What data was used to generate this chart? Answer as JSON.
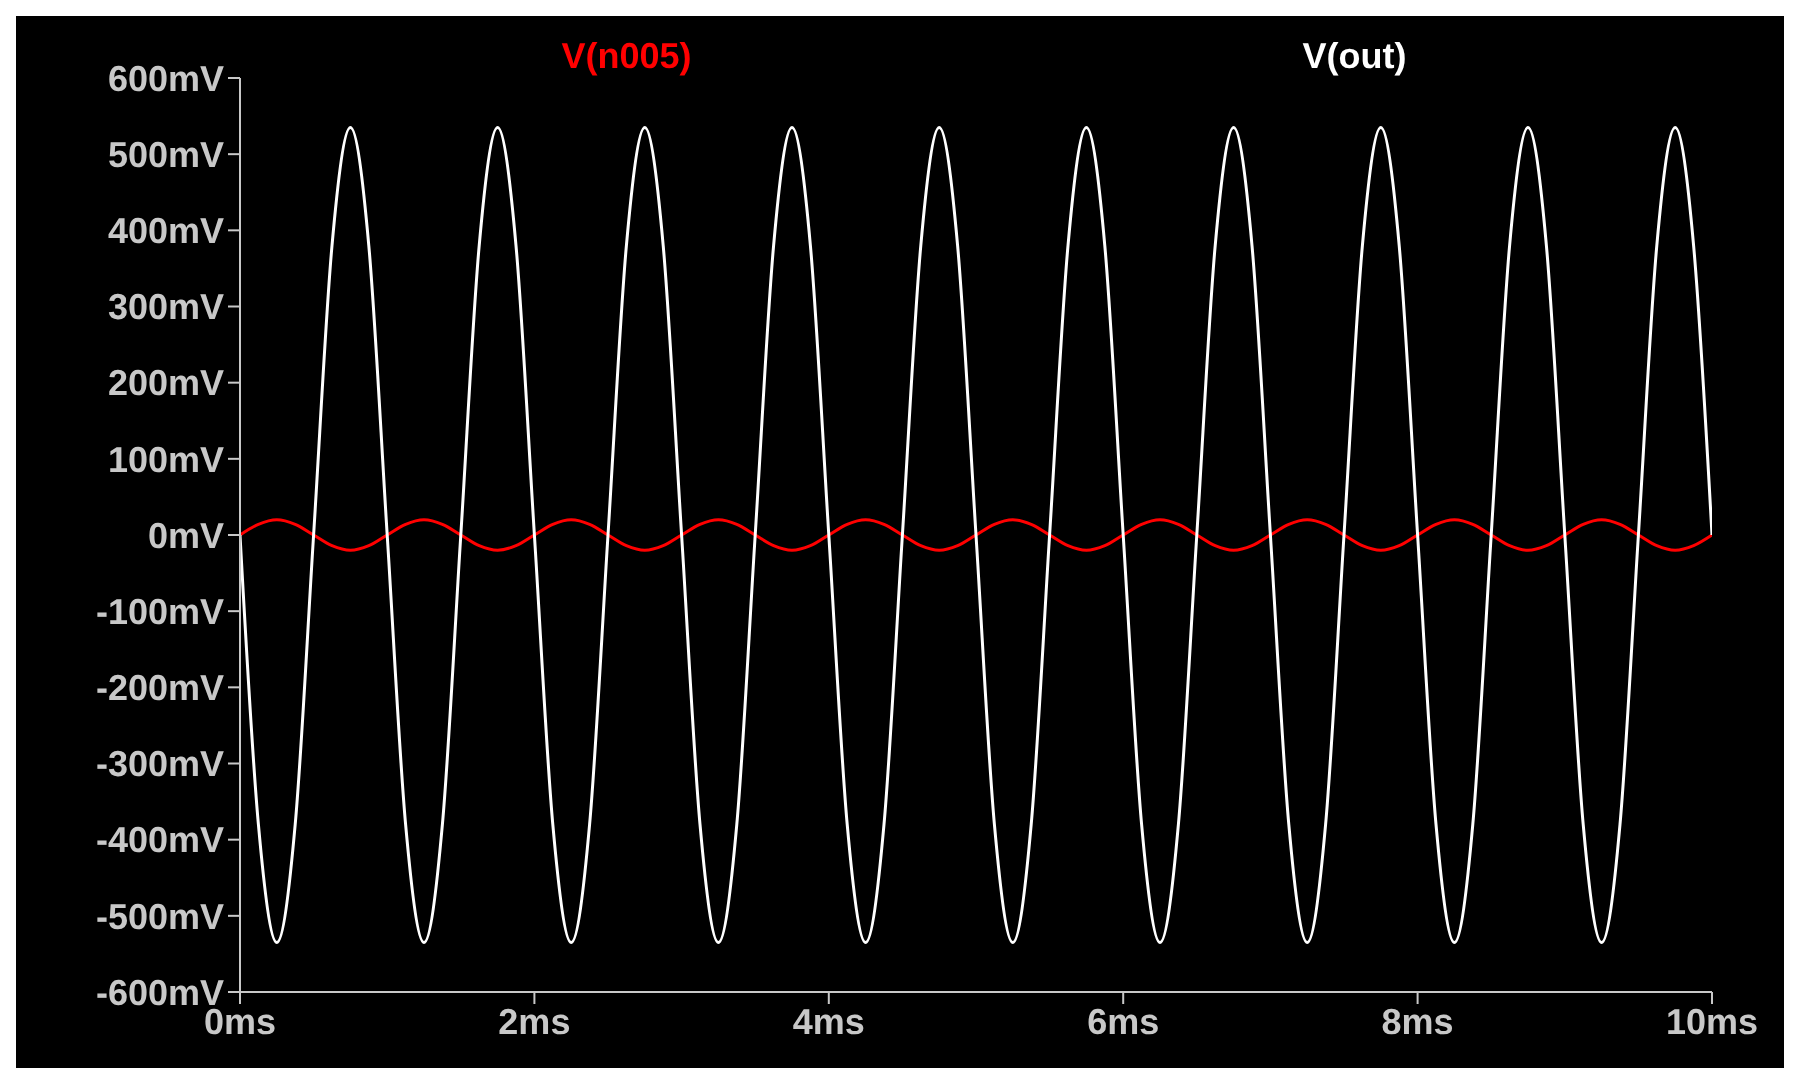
{
  "chart_data": {
    "type": "line",
    "legend": "top",
    "marker": "none",
    "line_style": "solid",
    "grid": false,
    "xlim": [
      0,
      10
    ],
    "xticks": [
      {
        "value": 0,
        "label": "0ms"
      },
      {
        "value": 2,
        "label": "2ms"
      },
      {
        "value": 4,
        "label": "4ms"
      },
      {
        "value": 6,
        "label": "6ms"
      },
      {
        "value": 8,
        "label": "8ms"
      },
      {
        "value": 10,
        "label": "10ms"
      }
    ],
    "ylim": [
      -600,
      600
    ],
    "yticks": [
      {
        "value": 600,
        "label": "600mV"
      },
      {
        "value": 500,
        "label": "500mV"
      },
      {
        "value": 400,
        "label": "400mV"
      },
      {
        "value": 300,
        "label": "300mV"
      },
      {
        "value": 200,
        "label": "200mV"
      },
      {
        "value": 100,
        "label": "100mV"
      },
      {
        "value": 0,
        "label": "0mV"
      },
      {
        "value": -100,
        "label": "-100mV"
      },
      {
        "value": -200,
        "label": "-200mV"
      },
      {
        "value": -300,
        "label": "-300mV"
      },
      {
        "value": -400,
        "label": "-400mV"
      },
      {
        "value": -500,
        "label": "-500mV"
      },
      {
        "value": -600,
        "label": "-600mV"
      }
    ],
    "x": [
      0,
      0.125,
      0.25,
      0.375,
      0.5,
      0.625,
      0.75,
      0.875,
      1,
      1.125,
      1.25,
      1.375,
      1.5,
      1.625,
      1.75,
      1.875,
      2,
      2.125,
      2.25,
      2.375,
      2.5,
      2.625,
      2.75,
      2.875,
      3,
      3.125,
      3.25,
      3.375,
      3.5,
      3.625,
      3.75,
      3.875,
      4,
      4.125,
      4.25,
      4.375,
      4.5,
      4.625,
      4.75,
      4.875,
      5,
      5.125,
      5.25,
      5.375,
      5.5,
      5.625,
      5.75,
      5.875,
      6,
      6.125,
      6.25,
      6.375,
      6.5,
      6.625,
      6.75,
      6.875,
      7,
      7.125,
      7.25,
      7.375,
      7.5,
      7.625,
      7.75,
      7.875,
      8,
      8.125,
      8.25,
      8.375,
      8.5,
      8.625,
      8.75,
      8.875,
      9,
      9.125,
      9.25,
      9.375,
      9.5,
      9.625,
      9.75,
      9.875,
      10
    ],
    "series": [
      {
        "name": "V(n005)",
        "color": "#ff0000",
        "values": [
          0,
          14,
          20,
          14,
          0,
          -14,
          -20,
          -14,
          0,
          14,
          20,
          14,
          0,
          -14,
          -20,
          -14,
          0,
          14,
          20,
          14,
          0,
          -14,
          -20,
          -14,
          0,
          14,
          20,
          14,
          0,
          -14,
          -20,
          -14,
          0,
          14,
          20,
          14,
          0,
          -14,
          -20,
          -14,
          0,
          14,
          20,
          14,
          0,
          -14,
          -20,
          -14,
          0,
          14,
          20,
          14,
          0,
          -14,
          -20,
          -14,
          0,
          14,
          20,
          14,
          0,
          -14,
          -20,
          -14,
          0,
          14,
          20,
          14,
          0,
          -14,
          -20,
          -14,
          0,
          14,
          20,
          14,
          0,
          -14,
          -20,
          -14,
          0
        ]
      },
      {
        "name": "V(out)",
        "color": "#ffffff",
        "values": [
          0,
          -380,
          -535,
          -380,
          0,
          380,
          535,
          380,
          0,
          -380,
          -535,
          -380,
          0,
          380,
          535,
          380,
          0,
          -380,
          -535,
          -380,
          0,
          380,
          535,
          380,
          0,
          -380,
          -535,
          -380,
          0,
          380,
          535,
          380,
          0,
          -380,
          -535,
          -380,
          0,
          380,
          535,
          380,
          0,
          -380,
          -535,
          -380,
          0,
          380,
          535,
          380,
          0,
          -380,
          -535,
          -380,
          0,
          380,
          535,
          380,
          0,
          -380,
          -535,
          -380,
          0,
          380,
          535,
          380,
          0,
          -380,
          -535,
          -380,
          0,
          380,
          535,
          380,
          0,
          -380,
          -535,
          -380,
          0,
          380,
          535,
          380,
          0
        ]
      }
    ]
  }
}
